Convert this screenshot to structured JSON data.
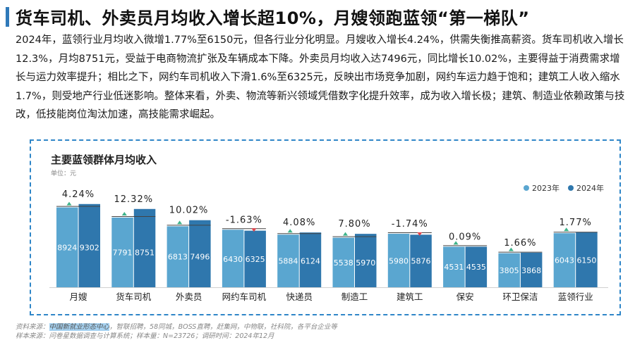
{
  "header": {
    "title": "货车司机、外卖员月均收入增长超10%，月嫂领跑蓝领“第一梯队”"
  },
  "intro": "2024年，蓝领行业月均收入微增1.77%至6150元，但各行业分化明显。月嫂收入增长4.24%，供需失衡推高薪资。货车司机收入增长12.3%，月均8751元，受益于电商物流扩张及车辆成本下降。外卖员月均收入达7496元，同比增长10.02%，主要得益于消费需求增长与运力效率提升；相比之下，网约车司机收入下滑1.6%至6325元，反映出市场竞争加剧，网约车运力趋于饱和；建筑工人收入缩水1.7%，则受地产行业低迷影响。整体来看，外卖、物流等新兴领域凭借数字化提升效率，成为收入增长极；建筑、制造业依赖政策与技改，低技能岗位淘汰加速，高技能需求崛起。",
  "colors": {
    "y2023": "#5aa6d0",
    "y2024": "#2f77ad",
    "up": "#3db38a",
    "down": "#e0444a",
    "accent": "#2f79b9"
  },
  "chart_data": {
    "type": "bar",
    "title": "主要蓝领群体月均收入",
    "unit": "单位：元",
    "categories": [
      "月嫂",
      "货车司机",
      "外卖员",
      "网约车司机",
      "快递员",
      "制造工",
      "建筑工",
      "保安",
      "环卫保洁",
      "蓝领行业"
    ],
    "series": [
      {
        "name": "2023年",
        "values": [
          8924,
          7791,
          6813,
          6430,
          5884,
          5538,
          5980,
          4531,
          3805,
          6043
        ]
      },
      {
        "name": "2024年",
        "values": [
          9302,
          8751,
          7496,
          6325,
          6124,
          5970,
          5876,
          4535,
          3868,
          6150
        ]
      }
    ],
    "growth_labels": [
      "4.24%",
      "12.32%",
      "10.02%",
      "-1.63%",
      "4.08%",
      "7.80%",
      "-1.74%",
      "0.09%",
      "1.66%",
      "1.77%"
    ],
    "growth_direction": [
      "up",
      "up",
      "up",
      "down",
      "up",
      "up",
      "down",
      "up",
      "up",
      "up"
    ],
    "ylim": [
      0,
      10000
    ],
    "legend_position": "top-right",
    "grid": false
  },
  "footer": {
    "source_prefix": "资料来源：",
    "source_highlight": "中国新就业形态中心",
    "source_rest": "，智联招聘，58同城，BOSS直聘，赶集网，中物联，社科院，各平台企业等",
    "sample_line": "样本来源：问卷星数据调查与计算系统；样本量：N=23726；调研时间：2024年12月"
  }
}
